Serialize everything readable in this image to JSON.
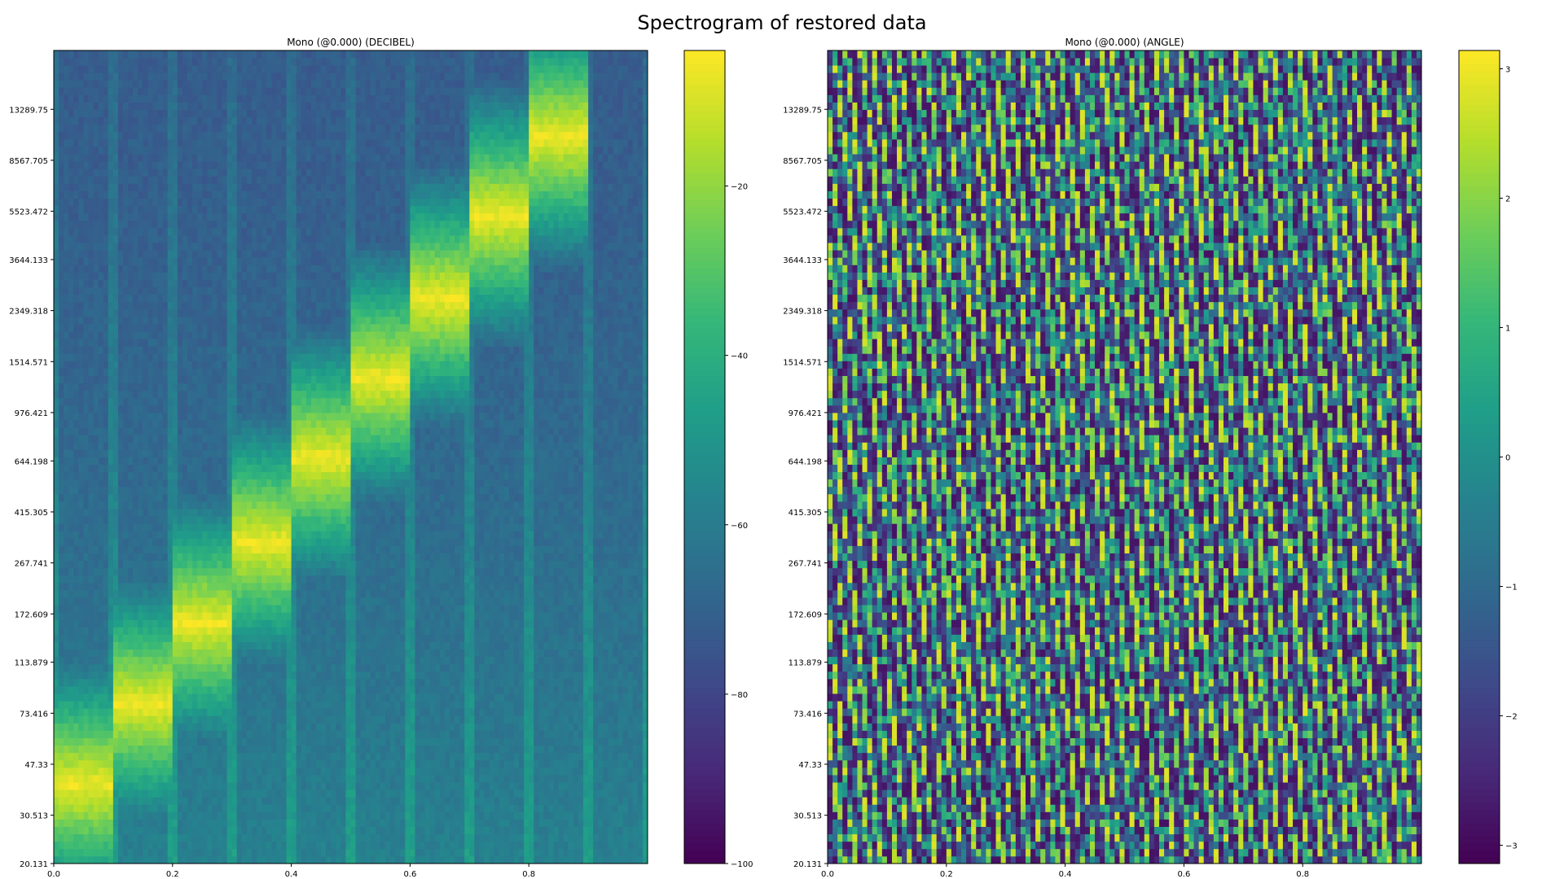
{
  "figure": {
    "title": "Spectrogram of restored data"
  },
  "colormap": {
    "name": "viridis",
    "stops": [
      "#440154",
      "#482878",
      "#3e4a89",
      "#31688e",
      "#26828e",
      "#1f9e89",
      "#35b779",
      "#6ece58",
      "#b5de2b",
      "#fde725"
    ]
  },
  "chart_data": [
    {
      "type": "heatmap",
      "title": "Mono (@0.000) (DECIBEL)",
      "xlabel": "",
      "ylabel": "",
      "xlim": [
        0,
        1
      ],
      "x_ticks": [
        0.0,
        0.2,
        0.4,
        0.6,
        0.8
      ],
      "x_tick_labels": [
        "0.0",
        "0.2",
        "0.4",
        "0.6",
        "0.8"
      ],
      "y_scale": "log",
      "ylim": [
        20.131,
        22050
      ],
      "y_ticks": [
        20.131,
        30.513,
        47.33,
        73.416,
        113.879,
        172.609,
        267.741,
        415.305,
        644.198,
        976.421,
        1514.571,
        2349.318,
        3644.133,
        5523.472,
        8567.705,
        13289.75
      ],
      "y_tick_labels": [
        "20.131",
        "30.513",
        "47.33",
        "73.416",
        "113.879",
        "172.609",
        "267.741",
        "415.305",
        "644.198",
        "976.421",
        "1514.571",
        "2349.318",
        "3644.133",
        "5523.472",
        "8567.705",
        "13289.75"
      ],
      "colorbar": {
        "range": [
          -100,
          -4
        ],
        "ticks": [
          -20,
          -40,
          -60,
          -80,
          -100
        ],
        "tick_labels": [
          "−20",
          "−40",
          "−60",
          "−80",
          "−100"
        ]
      },
      "tones": [
        {
          "start": 0.0,
          "end": 0.1,
          "freq": 40
        },
        {
          "start": 0.1,
          "end": 0.2,
          "freq": 80
        },
        {
          "start": 0.2,
          "end": 0.3,
          "freq": 160
        },
        {
          "start": 0.3,
          "end": 0.4,
          "freq": 320
        },
        {
          "start": 0.4,
          "end": 0.5,
          "freq": 660
        },
        {
          "start": 0.5,
          "end": 0.6,
          "freq": 1320
        },
        {
          "start": 0.6,
          "end": 0.7,
          "freq": 2600
        },
        {
          "start": 0.7,
          "end": 0.8,
          "freq": 5300
        },
        {
          "start": 0.8,
          "end": 0.9,
          "freq": 10500
        }
      ]
    },
    {
      "type": "heatmap",
      "title": "Mono (@0.000) (ANGLE)",
      "xlabel": "",
      "ylabel": "",
      "xlim": [
        0,
        1
      ],
      "x_ticks": [
        0.0,
        0.2,
        0.4,
        0.6,
        0.8
      ],
      "x_tick_labels": [
        "0.0",
        "0.2",
        "0.4",
        "0.6",
        "0.8"
      ],
      "y_scale": "log",
      "ylim": [
        20.131,
        22050
      ],
      "y_ticks": [
        20.131,
        30.513,
        47.33,
        73.416,
        113.879,
        172.609,
        267.741,
        415.305,
        644.198,
        976.421,
        1514.571,
        2349.318,
        3644.133,
        5523.472,
        8567.705,
        13289.75
      ],
      "y_tick_labels": [
        "20.131",
        "30.513",
        "47.33",
        "73.416",
        "113.879",
        "172.609",
        "267.741",
        "415.305",
        "644.198",
        "976.421",
        "1514.571",
        "2349.318",
        "3644.133",
        "5523.472",
        "8567.705",
        "13289.75"
      ],
      "colorbar": {
        "range": [
          -3.14159,
          3.14159
        ],
        "ticks": [
          3,
          2,
          1,
          0,
          -1,
          -2,
          -3
        ],
        "tick_labels": [
          "3",
          "2",
          "1",
          "0",
          "−1",
          "−2",
          "−3"
        ]
      }
    }
  ]
}
